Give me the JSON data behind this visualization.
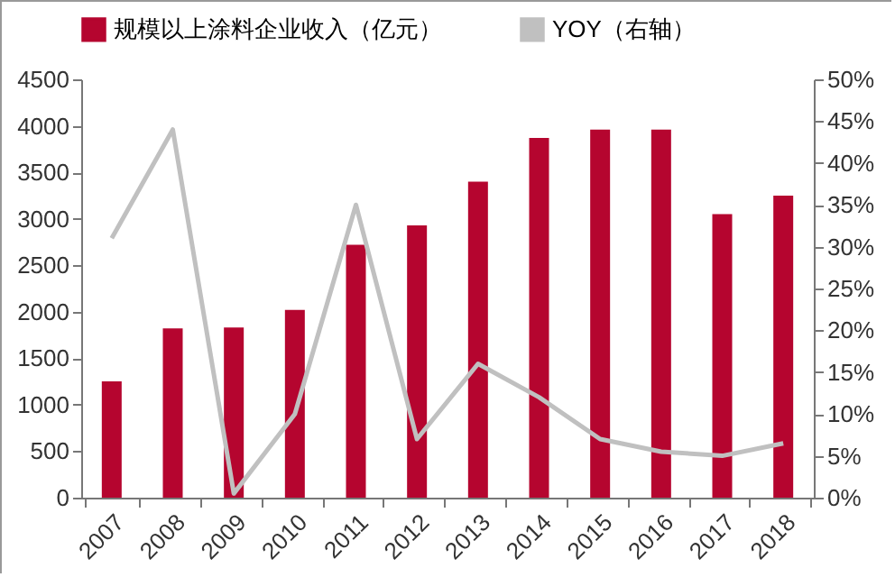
{
  "chart_data": {
    "type": "bar",
    "categories": [
      "2007",
      "2008",
      "2009",
      "2010",
      "2011",
      "2012",
      "2013",
      "2014",
      "2015",
      "2016",
      "2017",
      "2018"
    ],
    "series": [
      {
        "name": "规模以上涂料企业收入（亿元）",
        "color": "#b5052f",
        "values": [
          1250,
          1820,
          1830,
          2020,
          2720,
          2930,
          3400,
          3870,
          3960,
          3960,
          3050,
          3250
        ]
      },
      {
        "name": "YOY（右轴）",
        "type": "line",
        "axis": "y2",
        "color": "#c0c0c0",
        "values": [
          31,
          44,
          0.5,
          10,
          35,
          7,
          16,
          12,
          7,
          5.5,
          5,
          6.5
        ]
      }
    ],
    "ylim": [
      0,
      4500
    ],
    "yticks": [
      0,
      500,
      1000,
      1500,
      2000,
      2500,
      3000,
      3500,
      4000,
      4500
    ],
    "y2lim": [
      0,
      50
    ],
    "y2ticks": [
      {
        "value": 0,
        "label": "0%"
      },
      {
        "value": 5,
        "label": "5%"
      },
      {
        "value": 10,
        "label": "10%"
      },
      {
        "value": 15,
        "label": "15%"
      },
      {
        "value": 20,
        "label": "20%"
      },
      {
        "value": 25,
        "label": "25%"
      },
      {
        "value": 30,
        "label": "30%"
      },
      {
        "value": 35,
        "label": "35%"
      },
      {
        "value": 40,
        "label": "40%"
      },
      {
        "value": 45,
        "label": "45%"
      },
      {
        "value": 50,
        "label": "50%"
      }
    ],
    "grid": false,
    "legend": "top",
    "marker": "none",
    "line_style": "solid"
  }
}
